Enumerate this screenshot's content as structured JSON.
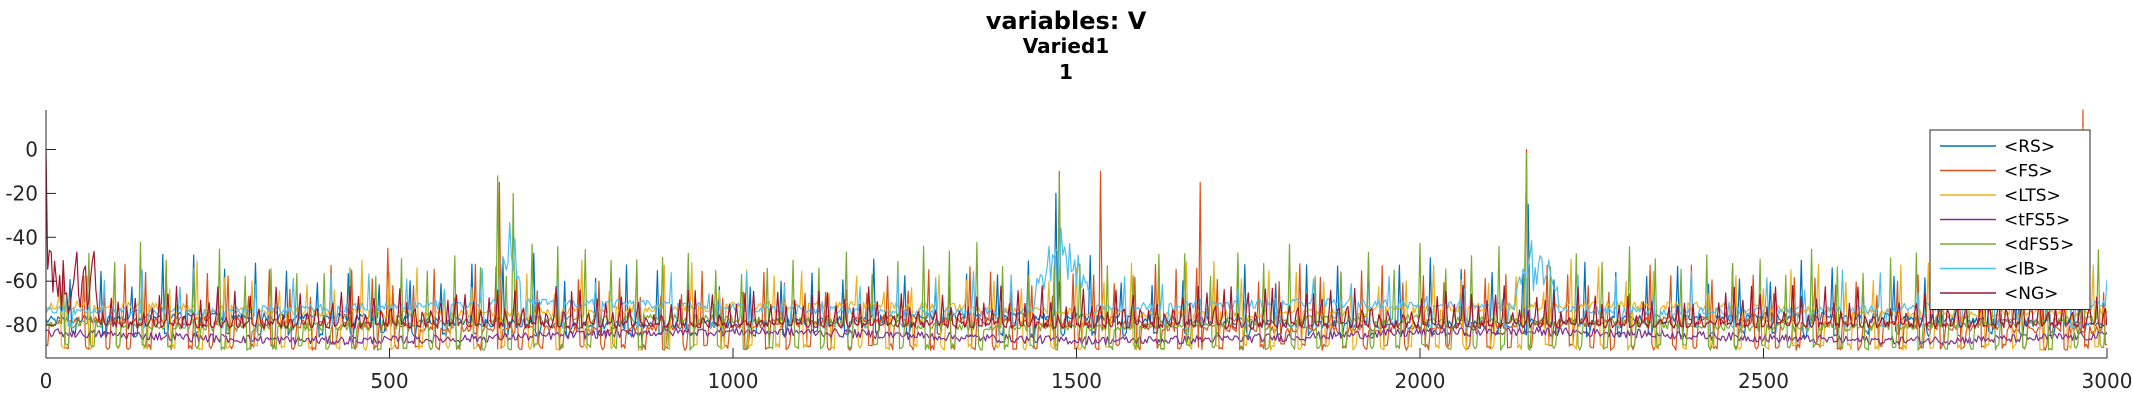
{
  "chart_data": {
    "type": "line",
    "title": "variables: V",
    "subtitle": "Varied1",
    "subtitle2": "1",
    "xlim": [
      0,
      3000
    ],
    "ylim": [
      -95,
      18
    ],
    "x_ticks": [
      0,
      500,
      1000,
      1500,
      2000,
      2500,
      3000
    ],
    "y_ticks": [
      0,
      -20,
      -40,
      -60,
      -80
    ],
    "grid": false,
    "legend_position": "top-right",
    "series": [
      {
        "name": "<RS>",
        "color": "#0072BD",
        "baseline": -78,
        "spike_period": 45,
        "spike_phase": 10,
        "spike_peak": -55,
        "trough": -84,
        "big_spikes": [
          [
            1470,
            -20
          ],
          [
            2158,
            -25
          ],
          [
            2905,
            -35
          ]
        ]
      },
      {
        "name": "<FS>",
        "color": "#D95319",
        "baseline": -80,
        "spike_period": 30,
        "spike_phase": 5,
        "spike_peak": -60,
        "trough": -90,
        "big_spikes": [
          [
            497,
            -45
          ],
          [
            660,
            -15
          ],
          [
            1475,
            -10
          ],
          [
            1535,
            -10
          ],
          [
            1680,
            -15
          ],
          [
            2155,
            0
          ],
          [
            2965,
            18
          ]
        ]
      },
      {
        "name": "<LTS>",
        "color": "#EDB120",
        "baseline": -73,
        "spike_period": 40,
        "spike_phase": 20,
        "spike_peak": -58,
        "trough": -90,
        "big_spikes": [
          [
            2155,
            -5
          ],
          [
            2965,
            10
          ]
        ]
      },
      {
        "name": "<tFS5>",
        "color": "#7E2F8E",
        "baseline": -85,
        "spike_period": 0,
        "spike_phase": 0,
        "spike_peak": -85,
        "trough": -86,
        "big_spikes": []
      },
      {
        "name": "<dFS5>",
        "color": "#77AC30",
        "baseline": -79,
        "spike_period": 38,
        "spike_phase": 15,
        "spike_peak": -50,
        "trough": -90,
        "big_spikes": [
          [
            657,
            -12
          ],
          [
            680,
            -20
          ],
          [
            1475,
            -12
          ],
          [
            2155,
            -2
          ],
          [
            2965,
            5
          ]
        ]
      },
      {
        "name": "<IB>",
        "color": "#4DBEEE",
        "baseline": -72,
        "spike_period": 55,
        "spike_phase": 25,
        "spike_peak": -62,
        "trough": -80,
        "big_spikes": [],
        "bursts": [
          [
            660,
            690,
            -22,
            -60
          ],
          [
            1440,
            1520,
            -30,
            -64
          ],
          [
            2140,
            2200,
            -33,
            -62
          ],
          [
            2880,
            2920,
            -40,
            -62
          ]
        ]
      },
      {
        "name": "<NG>",
        "color": "#A2142F",
        "baseline": -76,
        "spike_period": 12,
        "spike_phase": 3,
        "spike_peak": -70,
        "trough": -80,
        "big_spikes": [
          [
            0,
            0
          ]
        ],
        "early_burst": [
          0,
          75,
          -45,
          -75
        ]
      }
    ]
  }
}
